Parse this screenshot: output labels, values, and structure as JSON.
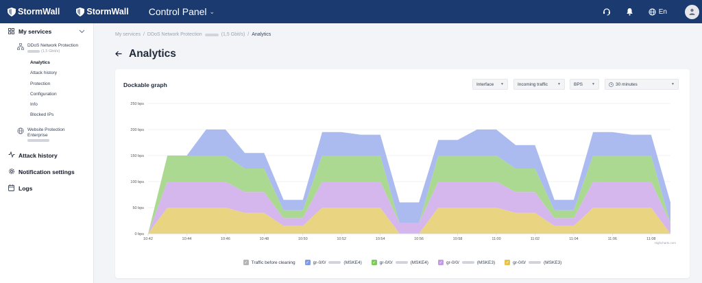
{
  "header": {
    "logo_text": "StormWall",
    "logo_text_2": "StormWall",
    "app_title": "Control Panel",
    "language": "En"
  },
  "sidebar": {
    "my_services": "My services",
    "ddos_service_name": "DDoS Network Protection",
    "ddos_service_sub": "(1,5 Gbit/s)",
    "sub_items": [
      "Analytics",
      "Attack history",
      "Protection",
      "Configuration",
      "Info",
      "Blocked IPs"
    ],
    "website_service_name": "Website Protection Enterprise",
    "attack_history": "Attack history",
    "notification_settings": "Notification settings",
    "logs": "Logs"
  },
  "breadcrumb": {
    "my_services": "My services",
    "service": "DDoS Network Protection",
    "service_suffix": "(1,5 Gbit/s)",
    "current": "Analytics",
    "sep": "/"
  },
  "page": {
    "title": "Analytics"
  },
  "card": {
    "title": "Dockable graph",
    "filters": {
      "interface": "Interface",
      "direction": "Incoming traffic",
      "unit": "BPS",
      "period": "30 minutes"
    },
    "credits": "Highcharts.com"
  },
  "chart_data": {
    "type": "area",
    "stacked": true,
    "ylim": [
      0,
      250
    ],
    "yticks": [
      "0 bps",
      "50 bps",
      "100 bps",
      "150 bps",
      "200 bps",
      "250 bps"
    ],
    "xticks": [
      "10:42",
      "10:44",
      "10:46",
      "10:48",
      "10:50",
      "10:52",
      "10:54",
      "10:56",
      "10:58",
      "11:00",
      "11:02",
      "11:04",
      "11:06",
      "11:08"
    ],
    "x": [
      "10:42",
      "10:43",
      "10:44",
      "10:45",
      "10:46",
      "10:47",
      "10:48",
      "10:49",
      "10:50",
      "10:51",
      "10:52",
      "10:53",
      "10:54",
      "10:55",
      "10:56",
      "10:57",
      "10:58",
      "10:59",
      "11:00",
      "11:01",
      "11:02",
      "11:03",
      "11:04",
      "11:05",
      "11:06",
      "11:07",
      "11:08",
      "11:09"
    ],
    "series": [
      {
        "name": "gr-0/0/ (MSKE3)",
        "color": "#e8d27a",
        "values": [
          0,
          50,
          50,
          50,
          50,
          40,
          40,
          15,
          15,
          50,
          50,
          50,
          50,
          0,
          0,
          50,
          50,
          50,
          50,
          40,
          40,
          15,
          15,
          50,
          50,
          50,
          50,
          0
        ]
      },
      {
        "name": "gr-0/0/ (MSKE3)",
        "color": "#d4b3ec",
        "values": [
          0,
          50,
          50,
          50,
          50,
          40,
          40,
          15,
          15,
          50,
          50,
          50,
          50,
          20,
          20,
          50,
          50,
          50,
          50,
          40,
          40,
          15,
          15,
          50,
          50,
          50,
          50,
          20
        ]
      },
      {
        "name": "gr-0/0/ (MSKE4)",
        "color": "#a8d78c",
        "values": [
          0,
          50,
          50,
          50,
          50,
          45,
          45,
          15,
          15,
          50,
          50,
          50,
          50,
          0,
          0,
          50,
          50,
          50,
          50,
          45,
          45,
          15,
          15,
          50,
          50,
          50,
          50,
          0
        ]
      },
      {
        "name": "gr-0/0/ (MSKE4)",
        "color": "#a6b7ee",
        "values": [
          0,
          0,
          0,
          50,
          50,
          30,
          30,
          20,
          20,
          45,
          45,
          40,
          40,
          40,
          40,
          30,
          30,
          50,
          50,
          45,
          45,
          20,
          20,
          45,
          45,
          40,
          40,
          40
        ]
      },
      {
        "name": "Traffic before cleaning",
        "color": "#b5b5b5",
        "values": [
          0,
          0,
          0,
          0,
          0,
          0,
          0,
          0,
          0,
          0,
          0,
          0,
          0,
          0,
          0,
          0,
          0,
          0,
          0,
          0,
          0,
          0,
          0,
          0,
          0,
          0,
          0,
          0
        ]
      }
    ],
    "legend": [
      {
        "label": "Traffic before cleaning",
        "color": "#b5b5b5"
      },
      {
        "label": "gr-0/0/",
        "suffix": "(MSKE4)",
        "color": "#7f9ae6"
      },
      {
        "label": "gr-0/0/",
        "suffix": "(MSKE4)",
        "color": "#7ccb55"
      },
      {
        "label": "gr-0/0/",
        "suffix": "(MSKE3)",
        "color": "#c39be3"
      },
      {
        "label": "gr-0/0/",
        "suffix": "(MSKE3)",
        "color": "#e6c34a"
      }
    ]
  }
}
